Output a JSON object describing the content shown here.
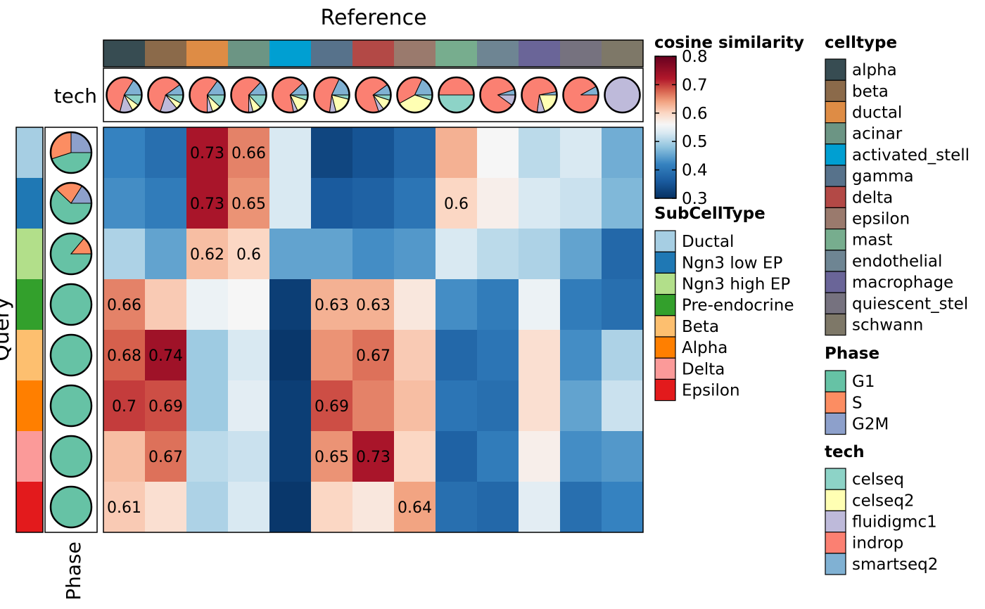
{
  "chart_data": {
    "type": "heatmap",
    "title": "Reference",
    "row_axis_label": "Query",
    "top_annotation_label": "tech",
    "left_annotation_label": "Phase",
    "columns": [
      "alpha",
      "beta",
      "ductal",
      "acinar",
      "activated_stellate",
      "gamma",
      "delta",
      "epsilon",
      "mast",
      "endothelial",
      "macrophage",
      "quiescent_stellate",
      "schwann"
    ],
    "rows": [
      "Ductal",
      "Ngn3 low EP",
      "Ngn3 high EP",
      "Pre-endocrine",
      "Beta",
      "Alpha",
      "Delta",
      "Epsilon"
    ],
    "values": [
      [
        0.42,
        0.39,
        0.73,
        0.66,
        0.53,
        0.33,
        0.35,
        0.38,
        0.63,
        0.56,
        0.51,
        0.53,
        0.46
      ],
      [
        0.43,
        0.41,
        0.73,
        0.65,
        0.53,
        0.36,
        0.37,
        0.4,
        0.6,
        0.57,
        0.53,
        0.52,
        0.47
      ],
      [
        0.5,
        0.45,
        0.62,
        0.6,
        0.45,
        0.45,
        0.43,
        0.44,
        0.53,
        0.51,
        0.5,
        0.45,
        0.38
      ],
      [
        0.66,
        0.61,
        0.55,
        0.56,
        0.32,
        0.63,
        0.63,
        0.58,
        0.43,
        0.41,
        0.55,
        0.41,
        0.39
      ],
      [
        0.68,
        0.74,
        0.49,
        0.53,
        0.31,
        0.65,
        0.67,
        0.61,
        0.38,
        0.4,
        0.59,
        0.43,
        0.5
      ],
      [
        0.7,
        0.69,
        0.49,
        0.54,
        0.32,
        0.69,
        0.66,
        0.62,
        0.4,
        0.39,
        0.59,
        0.45,
        0.52
      ],
      [
        0.62,
        0.67,
        0.51,
        0.52,
        0.32,
        0.65,
        0.73,
        0.6,
        0.37,
        0.41,
        0.57,
        0.43,
        0.44
      ],
      [
        0.61,
        0.59,
        0.5,
        0.53,
        0.31,
        0.6,
        0.58,
        0.64,
        0.39,
        0.38,
        0.54,
        0.39,
        0.42
      ]
    ],
    "cell_labels": [
      [
        "",
        "",
        "0.73",
        "0.66",
        "",
        "",
        "",
        "",
        "",
        "",
        "",
        "",
        ""
      ],
      [
        "",
        "",
        "0.73",
        "0.65",
        "",
        "",
        "",
        "",
        "0.6",
        "",
        "",
        "",
        ""
      ],
      [
        "",
        "",
        "0.62",
        "0.6",
        "",
        "",
        "",
        "",
        "",
        "",
        "",
        "",
        ""
      ],
      [
        "0.66",
        "",
        "",
        "",
        "",
        "0.63",
        "0.63",
        "",
        "",
        "",
        "",
        "",
        ""
      ],
      [
        "0.68",
        "0.74",
        "",
        "",
        "",
        "",
        "0.67",
        "",
        "",
        "",
        "",
        "",
        ""
      ],
      [
        "0.7",
        "0.69",
        "",
        "",
        "",
        "0.69",
        "",
        "",
        "",
        "",
        "",
        "",
        ""
      ],
      [
        "",
        "0.67",
        "",
        "",
        "",
        "0.65",
        "0.73",
        "",
        "",
        "",
        "",
        "",
        ""
      ],
      [
        "0.61",
        "",
        "",
        "",
        "",
        "",
        "",
        "0.64",
        "",
        "",
        "",
        "",
        ""
      ]
    ],
    "color_scale": {
      "title": "cosine similarity",
      "min": 0.3,
      "max": 0.8,
      "ticks": [
        "0.8",
        "0.7",
        "0.6",
        "0.5",
        "0.4",
        "0.3"
      ],
      "stops": [
        {
          "v": 0.3,
          "c": "#053061"
        },
        {
          "v": 0.36,
          "c": "#1a5b9e"
        },
        {
          "v": 0.42,
          "c": "#3582c0"
        },
        {
          "v": 0.48,
          "c": "#8fc3de"
        },
        {
          "v": 0.53,
          "c": "#d9e9f2"
        },
        {
          "v": 0.56,
          "c": "#f6f6f6"
        },
        {
          "v": 0.6,
          "c": "#fbd7c4"
        },
        {
          "v": 0.64,
          "c": "#f2a482"
        },
        {
          "v": 0.68,
          "c": "#d6604d"
        },
        {
          "v": 0.72,
          "c": "#b2182b"
        },
        {
          "v": 0.8,
          "c": "#67001f"
        }
      ]
    },
    "legends": {
      "celltype": {
        "title": "celltype",
        "items": [
          {
            "label": "alpha",
            "color": "#374c52"
          },
          {
            "label": "beta",
            "color": "#8b6a4a"
          },
          {
            "label": "ductal",
            "color": "#de8c45"
          },
          {
            "label": "acinar",
            "color": "#6c9584"
          },
          {
            "label": "activated_stell",
            "color": "#009fd2"
          },
          {
            "label": "gamma",
            "color": "#57728b"
          },
          {
            "label": "delta",
            "color": "#b34946"
          },
          {
            "label": "epsilon",
            "color": "#9a7a6d"
          },
          {
            "label": "mast",
            "color": "#77ad8e"
          },
          {
            "label": "endothelial",
            "color": "#6e8593"
          },
          {
            "label": "macrophage",
            "color": "#6a6598"
          },
          {
            "label": "quiescent_stel",
            "color": "#76727f"
          },
          {
            "label": "schwann",
            "color": "#7e7868"
          }
        ]
      },
      "subcelltype": {
        "title": "SubCellType",
        "items": [
          {
            "label": "Ductal",
            "color": "#a6cee3"
          },
          {
            "label": "Ngn3 low EP",
            "color": "#1f78b4"
          },
          {
            "label": "Ngn3 high EP",
            "color": "#b2df8a"
          },
          {
            "label": "Pre-endocrine",
            "color": "#33a02c"
          },
          {
            "label": "Beta",
            "color": "#fdbf6f"
          },
          {
            "label": "Alpha",
            "color": "#ff7f00"
          },
          {
            "label": "Delta",
            "color": "#fb9a99"
          },
          {
            "label": "Epsilon",
            "color": "#e31a1c"
          }
        ]
      },
      "phase": {
        "title": "Phase",
        "items": [
          {
            "label": "G1",
            "color": "#66c2a5"
          },
          {
            "label": "S",
            "color": "#fc8d62"
          },
          {
            "label": "G2M",
            "color": "#8da0cb"
          }
        ]
      },
      "tech": {
        "title": "tech",
        "items": [
          {
            "label": "celseq",
            "color": "#8dd3c7"
          },
          {
            "label": "celseq2",
            "color": "#ffffb3"
          },
          {
            "label": "fluidigmc1",
            "color": "#bebada"
          },
          {
            "label": "indrop",
            "color": "#fb8072"
          },
          {
            "label": "smartseq2",
            "color": "#80b1d3"
          }
        ]
      }
    },
    "tech_pies": [
      {
        "celseq": 0.1,
        "celseq2": 0.07,
        "fluidigmc1": 0.12,
        "indrop": 0.55,
        "smartseq2": 0.16
      },
      {
        "celseq": 0.08,
        "celseq2": 0.06,
        "fluidigmc1": 0.16,
        "indrop": 0.6,
        "smartseq2": 0.1
      },
      {
        "celseq": 0.12,
        "celseq2": 0.08,
        "fluidigmc1": 0.05,
        "indrop": 0.6,
        "smartseq2": 0.15
      },
      {
        "celseq": 0.13,
        "celseq2": 0.08,
        "fluidigmc1": 0.04,
        "indrop": 0.62,
        "smartseq2": 0.13
      },
      {
        "celseq": 0.05,
        "celseq2": 0.13,
        "fluidigmc1": 0.04,
        "indrop": 0.66,
        "smartseq2": 0.12
      },
      {
        "celseq": 0.04,
        "celseq2": 0.17,
        "fluidigmc1": 0.06,
        "indrop": 0.55,
        "smartseq2": 0.18
      },
      {
        "celseq": 0.05,
        "celseq2": 0.1,
        "fluidigmc1": 0.05,
        "indrop": 0.7,
        "smartseq2": 0.1
      },
      {
        "celseq": 0.05,
        "celseq2": 0.37,
        "fluidigmc1": 0.0,
        "indrop": 0.4,
        "smartseq2": 0.18
      },
      {
        "celseq": 0.5,
        "celseq2": 0.0,
        "fluidigmc1": 0.0,
        "indrop": 0.5,
        "smartseq2": 0.0
      },
      {
        "celseq": 0.0,
        "celseq2": 0.0,
        "fluidigmc1": 0.1,
        "indrop": 0.85,
        "smartseq2": 0.05
      },
      {
        "celseq": 0.0,
        "celseq2": 0.2,
        "fluidigmc1": 0.07,
        "indrop": 0.7,
        "smartseq2": 0.03
      },
      {
        "celseq": 0.0,
        "celseq2": 0.0,
        "fluidigmc1": 0.0,
        "indrop": 0.92,
        "smartseq2": 0.08
      },
      {
        "celseq": 0.0,
        "celseq2": 0.0,
        "fluidigmc1": 1.0,
        "indrop": 0.0,
        "smartseq2": 0.0
      }
    ],
    "phase_pies": [
      {
        "G1": 0.45,
        "S": 0.3,
        "G2M": 0.25
      },
      {
        "G1": 0.62,
        "S": 0.22,
        "G2M": 0.16
      },
      {
        "G1": 0.86,
        "S": 0.14,
        "G2M": 0.0
      },
      {
        "G1": 1.0,
        "S": 0.0,
        "G2M": 0.0
      },
      {
        "G1": 1.0,
        "S": 0.0,
        "G2M": 0.0
      },
      {
        "G1": 1.0,
        "S": 0.0,
        "G2M": 0.0
      },
      {
        "G1": 1.0,
        "S": 0.0,
        "G2M": 0.0
      },
      {
        "G1": 1.0,
        "S": 0.0,
        "G2M": 0.0
      }
    ]
  }
}
